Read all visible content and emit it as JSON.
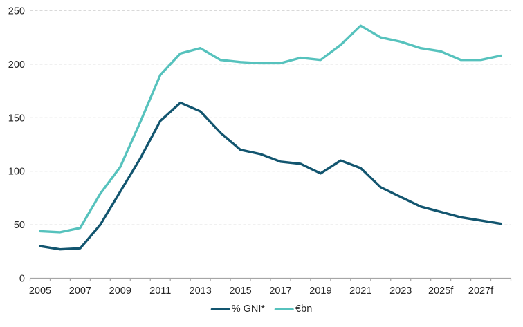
{
  "chart": {
    "background": "#ffffff",
    "axis_color": "#a6a6a6",
    "grid_color": "#d9d9d9",
    "text_color": "#262626",
    "legend": [
      {
        "label": "% GNI*",
        "color": "#12556F"
      },
      {
        "label": "€bn",
        "color": "#56C2BD"
      }
    ]
  },
  "chart_data": {
    "type": "line",
    "title": "",
    "xlabel": "",
    "ylabel": "",
    "x": [
      2005,
      2006,
      2007,
      2008,
      2009,
      2010,
      2011,
      2012,
      2013,
      2014,
      2015,
      2016,
      2017,
      2018,
      2019,
      2020,
      2021,
      2022,
      2023,
      2024,
      2025,
      2026,
      2027,
      2028
    ],
    "xtick_labels": [
      "2005",
      "2007",
      "2009",
      "2011",
      "2013",
      "2015",
      "2017",
      "2019",
      "2021",
      "2023",
      "2025f",
      "2027f"
    ],
    "series": [
      {
        "name": "% GNI*",
        "color": "#12556F",
        "values": [
          30,
          27,
          28,
          50,
          81,
          112,
          147,
          164,
          156,
          136,
          120,
          116,
          109,
          107,
          98,
          110,
          103,
          85,
          76,
          67,
          62,
          57,
          54,
          51
        ]
      },
      {
        "name": "€bn",
        "color": "#56C2BD",
        "values": [
          44,
          43,
          47,
          79,
          104,
          146,
          190,
          210,
          215,
          204,
          202,
          201,
          201,
          206,
          204,
          218,
          236,
          225,
          221,
          215,
          212,
          204,
          204,
          208
        ]
      }
    ],
    "ylim": [
      0,
      250
    ],
    "yticks": [
      0,
      50,
      100,
      150,
      200,
      250
    ],
    "grid": "horizontal-dashed",
    "legend_position": "bottom-center"
  }
}
